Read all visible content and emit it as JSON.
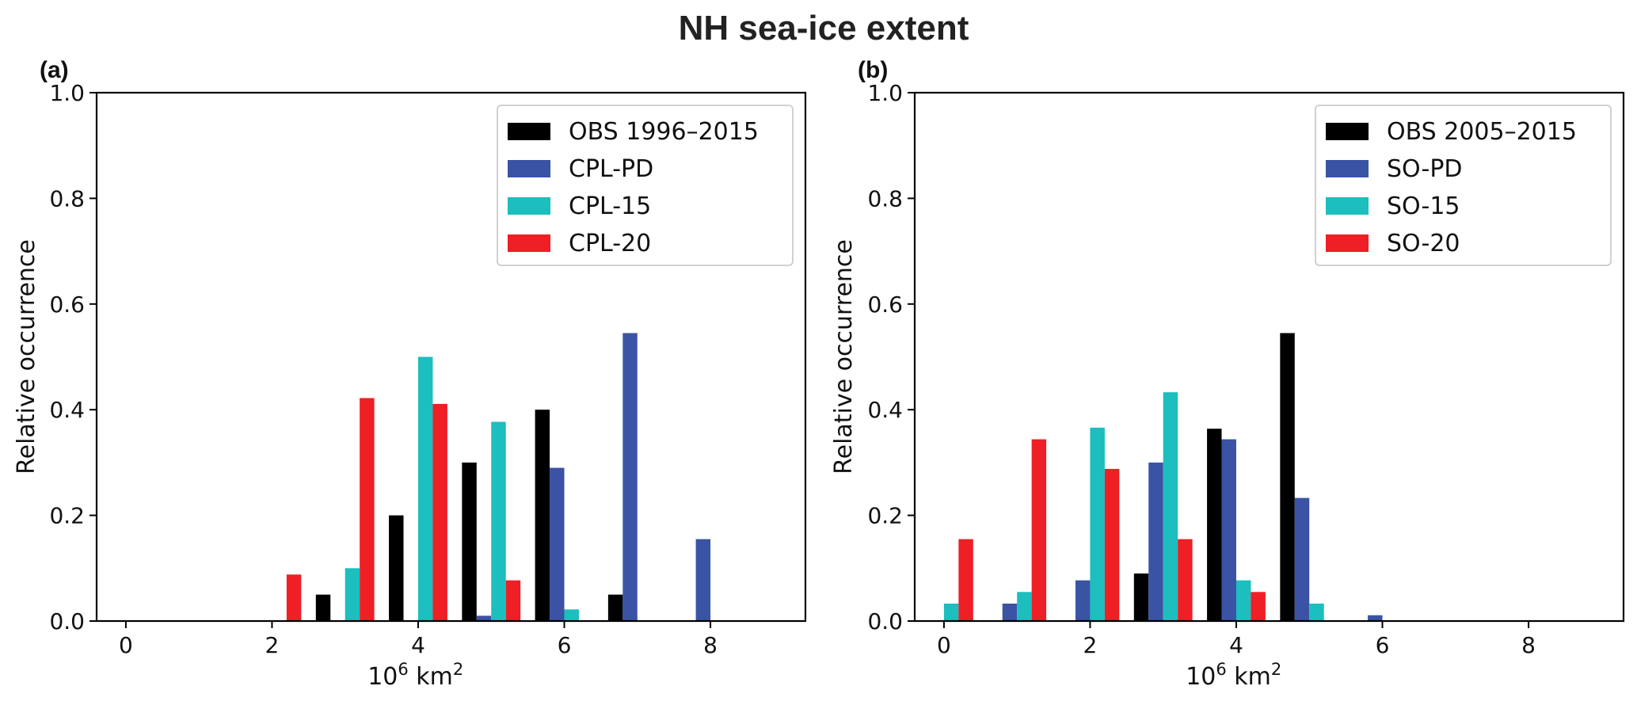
{
  "figure": {
    "title": "NH sea-ice extent"
  },
  "colors": {
    "obs": "#000000",
    "pd": "#3a53a4",
    "p15": "#1cbebe",
    "p20": "#ee1f25"
  },
  "chart_data": [
    {
      "type": "bar",
      "panel_label": "(a)",
      "title": "",
      "xlabel_base": "10",
      "xlabel_exp": "6",
      "xlabel_unit": "km",
      "xlabel_unit_exp": "2",
      "ylabel": "Relative occurrence",
      "xlim": [
        -0.4,
        9.3
      ],
      "ylim": [
        0,
        1.0
      ],
      "xticks": [
        0,
        2,
        4,
        6,
        8
      ],
      "xtick_labels": [
        "0",
        "2",
        "4",
        "6",
        "8"
      ],
      "yticks": [
        0,
        0.2,
        0.4,
        0.6,
        0.8,
        1.0
      ],
      "ytick_labels": [
        "0.0",
        "0.2",
        "0.4",
        "0.6",
        "0.8",
        "1.0"
      ],
      "bins": [
        0,
        1,
        2,
        3,
        4,
        5,
        6,
        7,
        8
      ],
      "bar_width": 0.2,
      "legend_loc": "upper right",
      "series": [
        {
          "name": "OBS 1996–2015",
          "color_key": "obs",
          "values": [
            0,
            0,
            0,
            0.05,
            0.2,
            0.3,
            0.4,
            0.05,
            0
          ]
        },
        {
          "name": "CPL-PD",
          "color_key": "pd",
          "values": [
            0,
            0,
            0,
            0,
            0,
            0.01,
            0.29,
            0.545,
            0.155
          ]
        },
        {
          "name": "CPL-15",
          "color_key": "p15",
          "values": [
            0,
            0,
            0,
            0.1,
            0.5,
            0.377,
            0.022,
            0,
            0
          ]
        },
        {
          "name": "CPL-20",
          "color_key": "p20",
          "values": [
            0,
            0,
            0.088,
            0.422,
            0.411,
            0.077,
            0,
            0,
            0
          ]
        }
      ]
    },
    {
      "type": "bar",
      "panel_label": "(b)",
      "title": "",
      "xlabel_base": "10",
      "xlabel_exp": "6",
      "xlabel_unit": "km",
      "xlabel_unit_exp": "2",
      "ylabel": "Relative occurrence",
      "xlim": [
        -0.4,
        9.3
      ],
      "ylim": [
        0,
        1.0
      ],
      "xticks": [
        0,
        2,
        4,
        6,
        8
      ],
      "xtick_labels": [
        "0",
        "2",
        "4",
        "6",
        "8"
      ],
      "yticks": [
        0,
        0.2,
        0.4,
        0.6,
        0.8,
        1.0
      ],
      "ytick_labels": [
        "0.0",
        "0.2",
        "0.4",
        "0.6",
        "0.8",
        "1.0"
      ],
      "bins": [
        0,
        1,
        2,
        3,
        4,
        5,
        6,
        7,
        8
      ],
      "bar_width": 0.2,
      "legend_loc": "upper right",
      "series": [
        {
          "name": "OBS 2005–2015",
          "color_key": "obs",
          "values": [
            0,
            0,
            0,
            0.09,
            0.364,
            0.545,
            0,
            0,
            0
          ]
        },
        {
          "name": "SO-PD",
          "color_key": "pd",
          "values": [
            0,
            0.033,
            0.077,
            0.3,
            0.344,
            0.233,
            0.011,
            0,
            0
          ]
        },
        {
          "name": "SO-15",
          "color_key": "p15",
          "values": [
            0.033,
            0.055,
            0.366,
            0.433,
            0.077,
            0.033,
            0,
            0,
            0
          ]
        },
        {
          "name": "SO-20",
          "color_key": "p20",
          "values": [
            0.155,
            0.344,
            0.288,
            0.155,
            0.055,
            0,
            0,
            0,
            0
          ]
        }
      ]
    }
  ]
}
